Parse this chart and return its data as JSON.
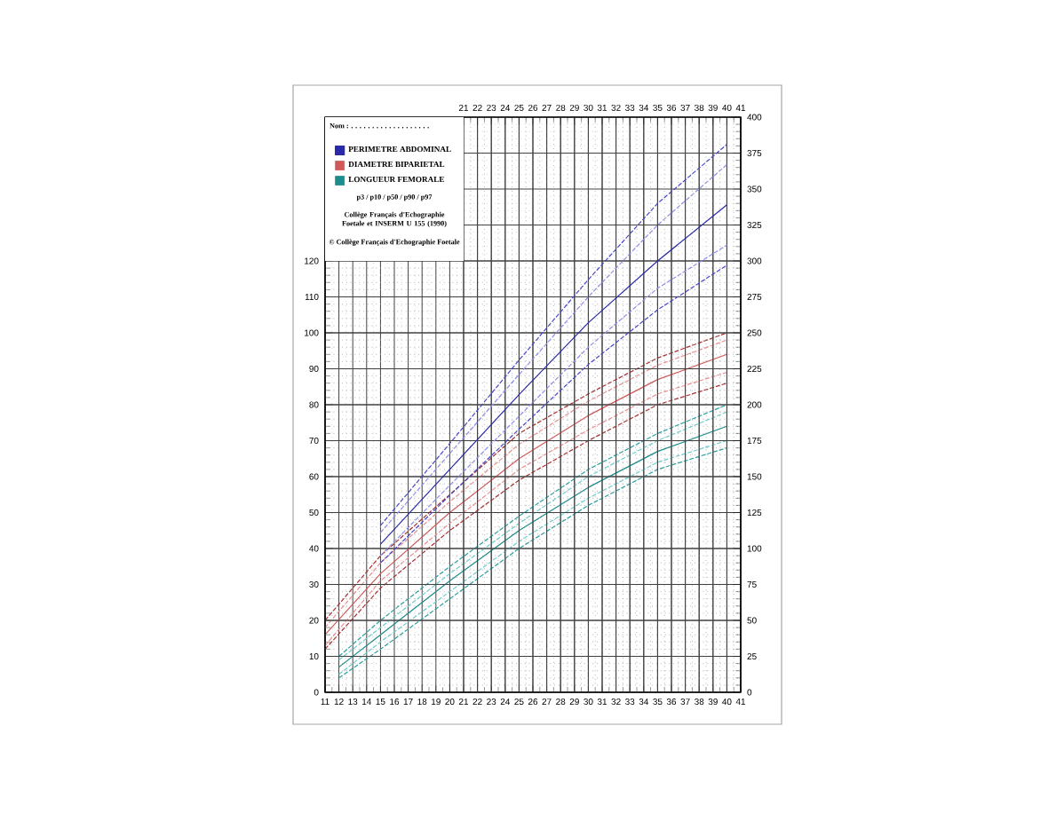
{
  "chart_data": {
    "type": "line",
    "annotations": [
      "Nom : . . . . . . . . . . . . . . . . . . .",
      "p3 / p10 / p50 / p90 / p97",
      "Collège Français d'Echographie Foetale et INSERM U 155 (1990)",
      "© Collège Français d'Echographie Foetale"
    ],
    "xlim": [
      11,
      41
    ],
    "xticks": [
      11,
      12,
      13,
      14,
      15,
      16,
      17,
      18,
      19,
      20,
      21,
      22,
      23,
      24,
      25,
      26,
      27,
      28,
      29,
      30,
      31,
      32,
      33,
      34,
      35,
      36,
      37,
      38,
      39,
      40,
      41
    ],
    "x2lim": [
      11,
      41
    ],
    "x2ticks": [
      21,
      22,
      23,
      24,
      25,
      26,
      27,
      28,
      29,
      30,
      31,
      32,
      33,
      34,
      35,
      36,
      37,
      38,
      39,
      40,
      41
    ],
    "ylim": [
      0,
      160
    ],
    "yticks": [
      0,
      10,
      20,
      30,
      40,
      50,
      60,
      70,
      80,
      90,
      100,
      110,
      120
    ],
    "y2lim": [
      0,
      400
    ],
    "y2ticks": [
      0,
      25,
      50,
      75,
      100,
      125,
      150,
      175,
      200,
      225,
      250,
      275,
      300,
      325,
      350,
      375,
      400
    ],
    "grid": true,
    "legend": "top left",
    "marker": "none",
    "series": [
      {
        "name": "PERIMETRE ABDOMINAL",
        "color": "#2a2aa8",
        "axis": "y2",
        "line_style": "solid",
        "x": [
          15,
          20,
          25,
          30,
          35,
          40
        ],
        "values": [
          103,
          155,
          207,
          257,
          300,
          339
        ]
      },
      {
        "color": "#4848c8",
        "axis": "y2",
        "line_style": "dashed",
        "x": [
          15,
          20,
          25,
          30,
          35,
          40
        ],
        "values": [
          90,
          137,
          183,
          228,
          266,
          297
        ]
      },
      {
        "color": "#9090e8",
        "axis": "y2",
        "line_style": "dashed",
        "x": [
          15,
          20,
          25,
          30,
          35,
          40
        ],
        "values": [
          95,
          144,
          192,
          240,
          281,
          311
        ]
      },
      {
        "color": "#9090e8",
        "axis": "y2",
        "line_style": "dashed",
        "x": [
          15,
          20,
          25,
          30,
          35,
          40
        ],
        "values": [
          111,
          166,
          221,
          275,
          325,
          367
        ]
      },
      {
        "color": "#4848c8",
        "axis": "y2",
        "line_style": "dashed",
        "x": [
          15,
          20,
          25,
          30,
          35,
          40
        ],
        "values": [
          116,
          173,
          231,
          287,
          340,
          381
        ]
      },
      {
        "name": "DIAMETRE BIPARIETAL",
        "color": "#d05a5a",
        "line_style": "solid",
        "x": [
          11,
          15,
          20,
          25,
          30,
          35,
          40
        ],
        "values": [
          16,
          33,
          50,
          65,
          77,
          87,
          94
        ]
      },
      {
        "color": "#a83030",
        "line_style": "dashed",
        "x": [
          11,
          15,
          20,
          25,
          30,
          35,
          40
        ],
        "values": [
          12,
          29,
          45,
          59,
          70,
          80,
          86
        ]
      },
      {
        "color": "#e89090",
        "line_style": "dashed",
        "x": [
          11,
          15,
          20,
          25,
          30,
          35,
          40
        ],
        "values": [
          13,
          31,
          47,
          62,
          73,
          83,
          89
        ]
      },
      {
        "color": "#e89090",
        "line_style": "dashed",
        "x": [
          11,
          15,
          20,
          25,
          30,
          35,
          40
        ],
        "values": [
          18,
          36,
          53,
          69,
          81,
          91,
          98
        ]
      },
      {
        "color": "#a83030",
        "line_style": "dashed",
        "x": [
          11,
          15,
          20,
          25,
          30,
          35,
          40
        ],
        "values": [
          20,
          38,
          55,
          72,
          83,
          93,
          100
        ]
      },
      {
        "name": "LONGUEUR FEMORALE",
        "color": "#1c8c8c",
        "line_style": "solid",
        "x": [
          12,
          15,
          20,
          25,
          30,
          35,
          40
        ],
        "values": [
          7,
          16,
          31,
          45,
          57,
          67,
          74
        ]
      },
      {
        "color": "#2aa0a0",
        "line_style": "dashed",
        "x": [
          12,
          15,
          20,
          25,
          30,
          35,
          40
        ],
        "values": [
          4,
          12,
          26,
          40,
          52,
          62,
          68
        ]
      },
      {
        "color": "#70cccc",
        "line_style": "dashed",
        "x": [
          12,
          15,
          20,
          25,
          30,
          35,
          40
        ],
        "values": [
          5,
          14,
          28,
          42,
          54,
          64,
          70
        ]
      },
      {
        "color": "#70cccc",
        "line_style": "dashed",
        "x": [
          12,
          15,
          20,
          25,
          30,
          35,
          40
        ],
        "values": [
          9,
          18,
          33,
          47,
          60,
          70,
          78
        ]
      },
      {
        "color": "#2aa0a0",
        "line_style": "dashed",
        "x": [
          12,
          15,
          20,
          25,
          30,
          35,
          40
        ],
        "values": [
          10,
          20,
          35,
          49,
          62,
          72,
          80
        ]
      }
    ]
  }
}
